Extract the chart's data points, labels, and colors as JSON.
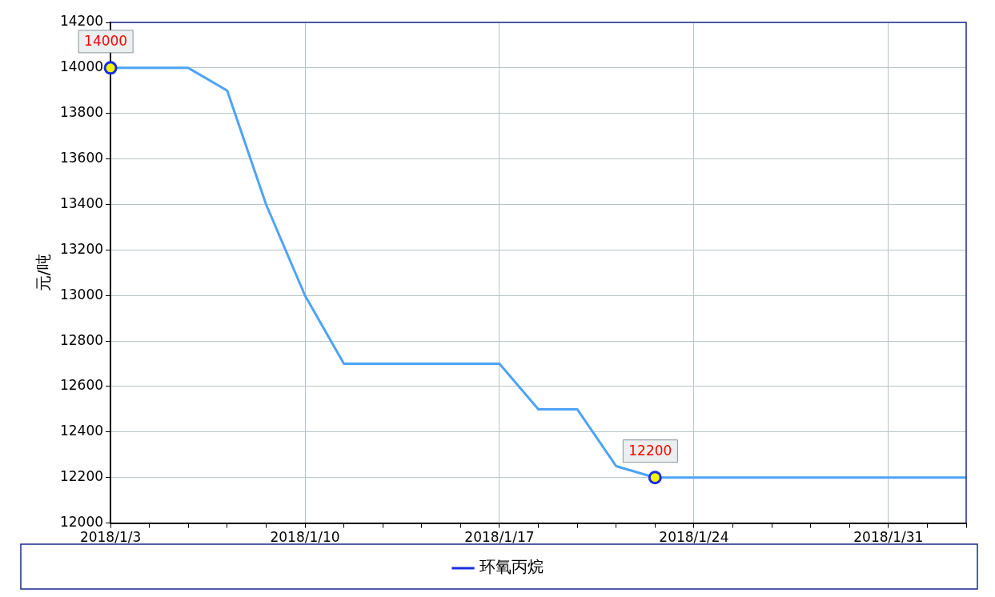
{
  "chart_data": {
    "type": "line",
    "ylabel": "元/吨",
    "categories": [
      "2018/1/3",
      null,
      null,
      null,
      null,
      "2018/1/10",
      null,
      null,
      null,
      null,
      "2018/1/17",
      null,
      null,
      null,
      null,
      "2018/1/24",
      null,
      null,
      null,
      null,
      "2018/1/31",
      null,
      null
    ],
    "series": [
      {
        "name": "环氧丙烷",
        "color": "#4da3f7",
        "values": [
          14000,
          14000,
          14000,
          13900,
          13400,
          13000,
          12700,
          12700,
          12700,
          12700,
          12700,
          12500,
          12500,
          12250,
          12200,
          12200,
          12200,
          12200,
          12200,
          12200,
          12200,
          12200,
          12200
        ],
        "value_labels": [
          "14000",
          null,
          null,
          null,
          null,
          null,
          null,
          null,
          null,
          null,
          null,
          null,
          null,
          null,
          "12200",
          null,
          null,
          null,
          null,
          null,
          null,
          null,
          null
        ]
      }
    ],
    "ylim": [
      12000,
      14200
    ],
    "yticks": [
      12000,
      12200,
      12400,
      12600,
      12800,
      13000,
      13200,
      13400,
      13600,
      13800,
      14000,
      14200
    ],
    "grid": true,
    "legend": "bottom"
  }
}
